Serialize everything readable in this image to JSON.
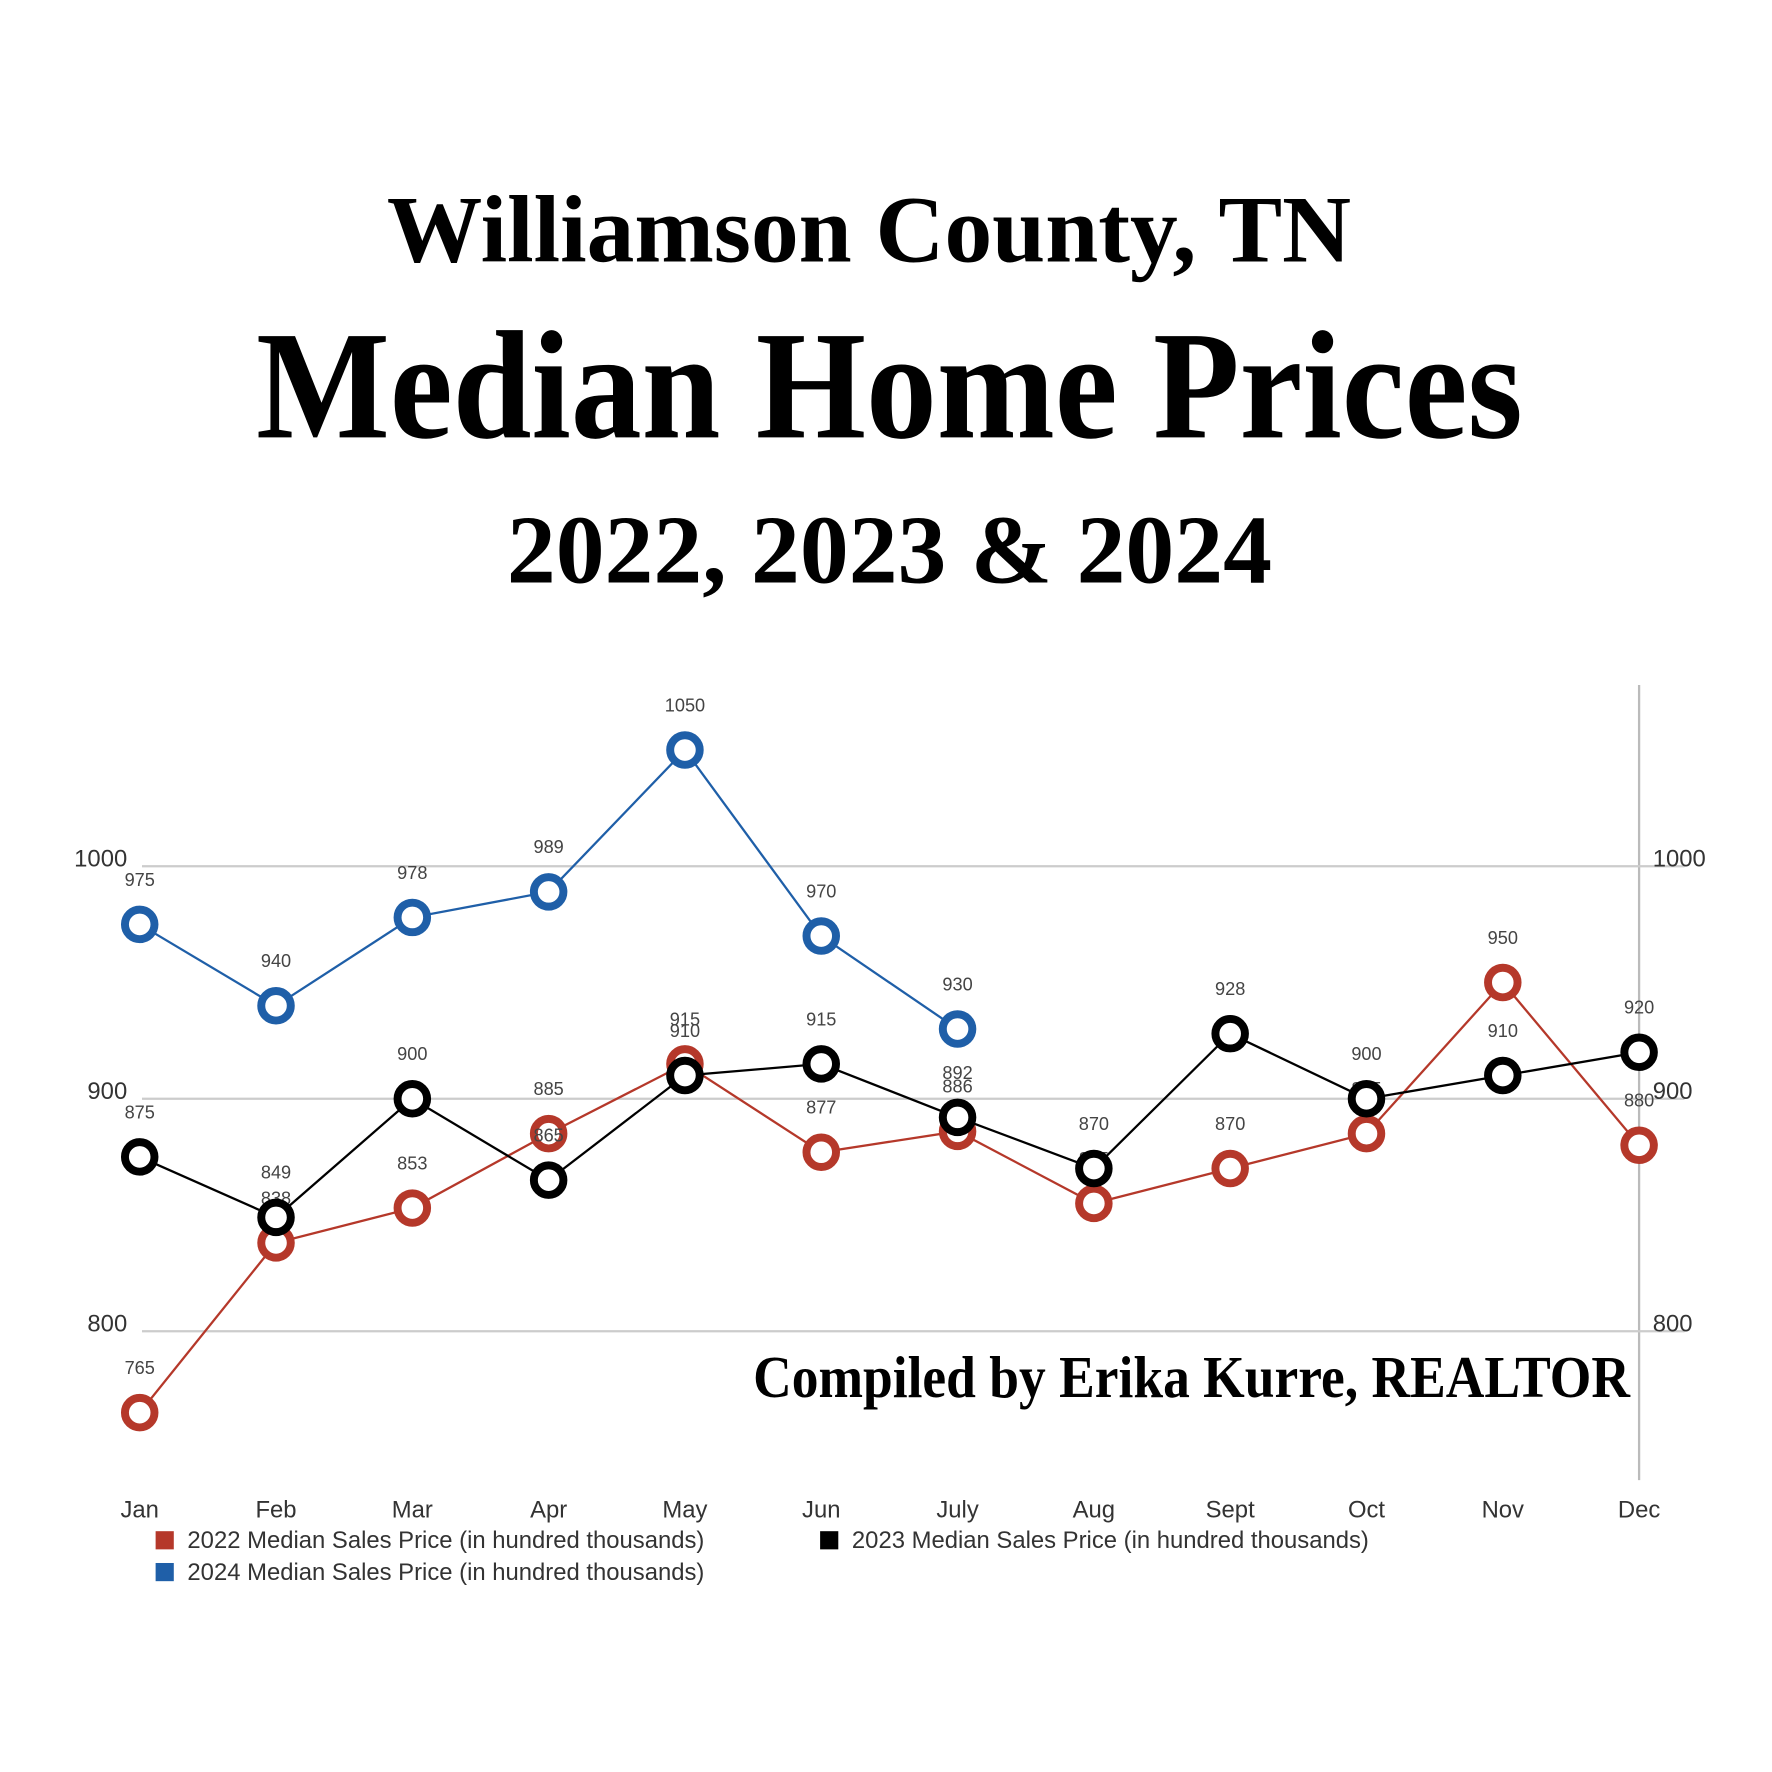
{
  "chart_data": {
    "type": "line",
    "subtitle": "Williamson County, TN",
    "title": "Median Home Prices",
    "years": "2022, 2023 & 2024",
    "annotation": "Compiled by Erika Kurre, REALTOR",
    "categories": [
      "Jan",
      "Feb",
      "Mar",
      "Apr",
      "May",
      "Jun",
      "July",
      "Aug",
      "Sept",
      "Oct",
      "Nov",
      "Dec"
    ],
    "series": [
      {
        "name": "2022 Median Sales Price (in hundred thousands)",
        "color": "#b5382a",
        "values": [
          765,
          838,
          853,
          885,
          915,
          877,
          886,
          855,
          870,
          885,
          950,
          880
        ]
      },
      {
        "name": "2023 Median Sales Price (in hundred thousands)",
        "color": "#000000",
        "values": [
          875,
          849,
          900,
          865,
          910,
          915,
          892,
          870,
          928,
          900,
          910,
          920
        ]
      },
      {
        "name": "2024 Median Sales Price (in hundred thousands)",
        "color": "#1f5fa8",
        "values": [
          975,
          940,
          978,
          989,
          1050,
          970,
          930,
          null,
          null,
          null,
          null,
          null
        ]
      }
    ],
    "ylim": [
      736,
      1078
    ],
    "yticks": [
      800,
      900,
      1000
    ],
    "grid": true
  }
}
